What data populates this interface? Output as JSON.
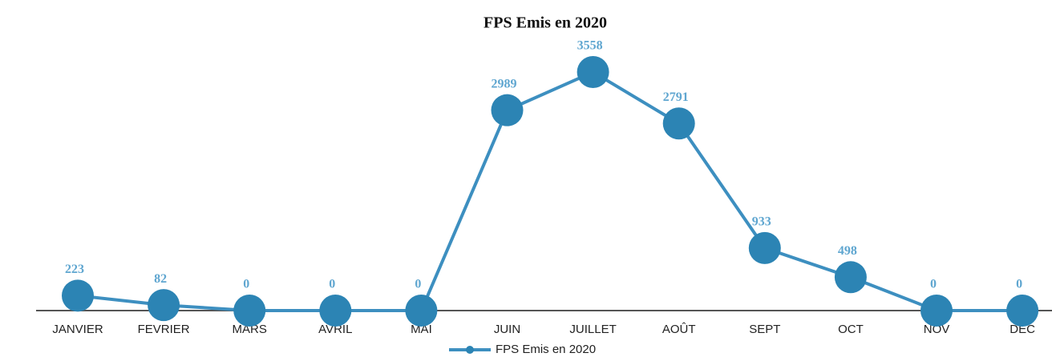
{
  "chart_data": {
    "type": "line",
    "title": "FPS Emis en 2020",
    "categories": [
      "JANVIER",
      "FEVRIER",
      "MARS",
      "AVRIL",
      "MAI",
      "JUIN",
      "JUILLET",
      "AOÛT",
      "SEPT",
      "OCT",
      "NOV",
      "DEC"
    ],
    "series": [
      {
        "name": "FPS Emis en 2020",
        "color": "#3d8fc0",
        "values": [
          223,
          82,
          0,
          0,
          0,
          2989,
          3558,
          2791,
          933,
          498,
          0,
          0
        ]
      }
    ],
    "ylim": [
      0,
      4000
    ],
    "legend": "bottom"
  }
}
